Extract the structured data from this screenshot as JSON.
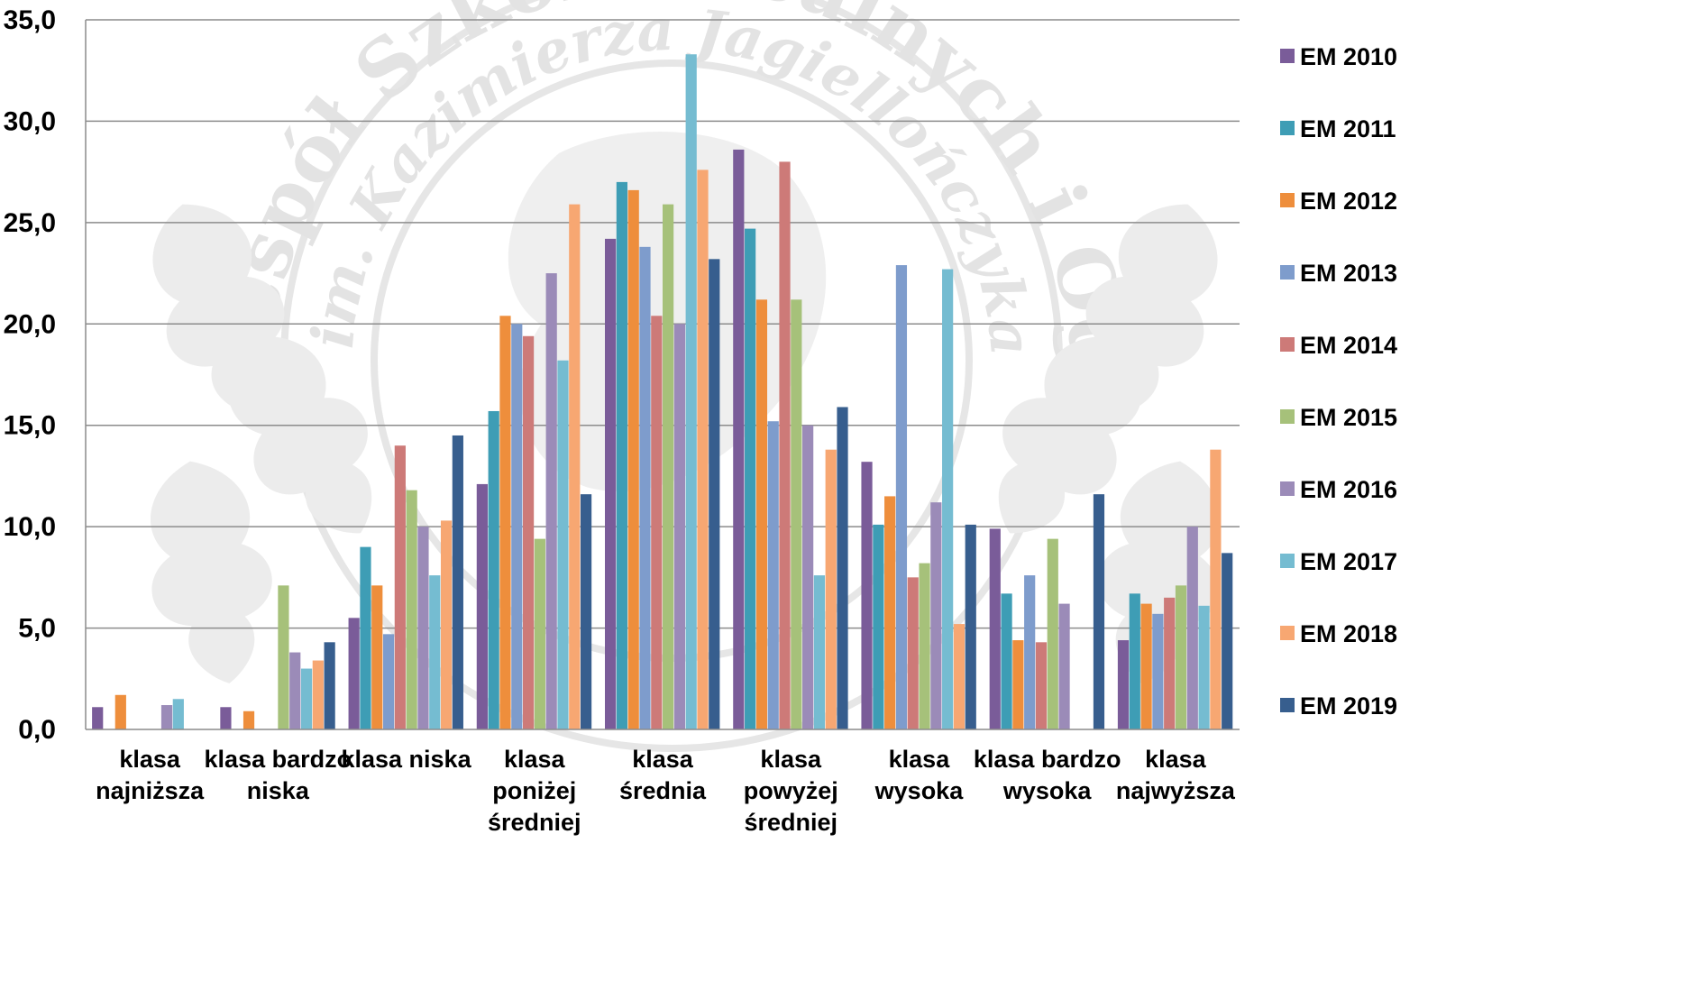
{
  "chart_data": {
    "type": "bar",
    "title": "",
    "xlabel": "",
    "ylabel": "",
    "ylim": [
      0,
      35
    ],
    "y_ticks": [
      "0,0",
      "5,0",
      "10,0",
      "15,0",
      "20,0",
      "25,0",
      "30,0",
      "35,0"
    ],
    "grid": true,
    "legend_position": "right",
    "categories": [
      [
        "klasa",
        "najniższa"
      ],
      [
        "klasa bardzo",
        "niska"
      ],
      [
        "klasa niska"
      ],
      [
        "klasa",
        "poniżej",
        "średniej"
      ],
      [
        "klasa",
        "średnia"
      ],
      [
        "klasa",
        "powyżej",
        "średniej"
      ],
      [
        "klasa",
        "wysoka"
      ],
      [
        "klasa bardzo",
        "wysoka"
      ],
      [
        "klasa",
        "najwyższa"
      ]
    ],
    "series": [
      {
        "name": "EM 2010",
        "color": "#7a5c99",
        "values": [
          1.1,
          1.1,
          5.5,
          12.1,
          24.2,
          28.6,
          13.2,
          9.9,
          4.4
        ]
      },
      {
        "name": "EM 2011",
        "color": "#3e9db5",
        "values": [
          0,
          0,
          9.0,
          15.7,
          27.0,
          24.7,
          10.1,
          6.7,
          6.7
        ]
      },
      {
        "name": "EM 2012",
        "color": "#ee8e3c",
        "values": [
          1.7,
          0.9,
          7.1,
          20.4,
          26.6,
          21.2,
          11.5,
          4.4,
          6.2
        ]
      },
      {
        "name": "EM 2013",
        "color": "#7e9ccc",
        "values": [
          0,
          0,
          4.7,
          20.0,
          23.8,
          15.2,
          22.9,
          7.6,
          5.7
        ]
      },
      {
        "name": "EM 2014",
        "color": "#cd7a78",
        "values": [
          0,
          0,
          14.0,
          19.4,
          20.4,
          28.0,
          7.5,
          4.3,
          6.5
        ]
      },
      {
        "name": "EM 2015",
        "color": "#a6c17a",
        "values": [
          0,
          7.1,
          11.8,
          9.4,
          25.9,
          21.2,
          8.2,
          9.4,
          7.1
        ]
      },
      {
        "name": "EM 2016",
        "color": "#9b8bb8",
        "values": [
          1.2,
          3.8,
          10.0,
          22.5,
          20.0,
          15.0,
          11.2,
          6.2,
          10.0
        ]
      },
      {
        "name": "EM 2017",
        "color": "#75bcd1",
        "values": [
          1.5,
          3.0,
          7.6,
          18.2,
          33.3,
          7.6,
          22.7,
          0,
          6.1
        ]
      },
      {
        "name": "EM 2018",
        "color": "#f7a772",
        "values": [
          0,
          3.4,
          10.3,
          25.9,
          27.6,
          13.8,
          5.2,
          0,
          13.8
        ]
      },
      {
        "name": "EM 2019",
        "color": "#375e8e",
        "values": [
          0,
          4.3,
          14.5,
          11.6,
          23.2,
          15.9,
          10.1,
          11.6,
          8.7
        ]
      }
    ]
  },
  "watermark": {
    "text_top": "Zespół Szkół Licealnych i Ogólnokształcących",
    "text_inner": "im. Kazimierza Jagiellończyka"
  }
}
